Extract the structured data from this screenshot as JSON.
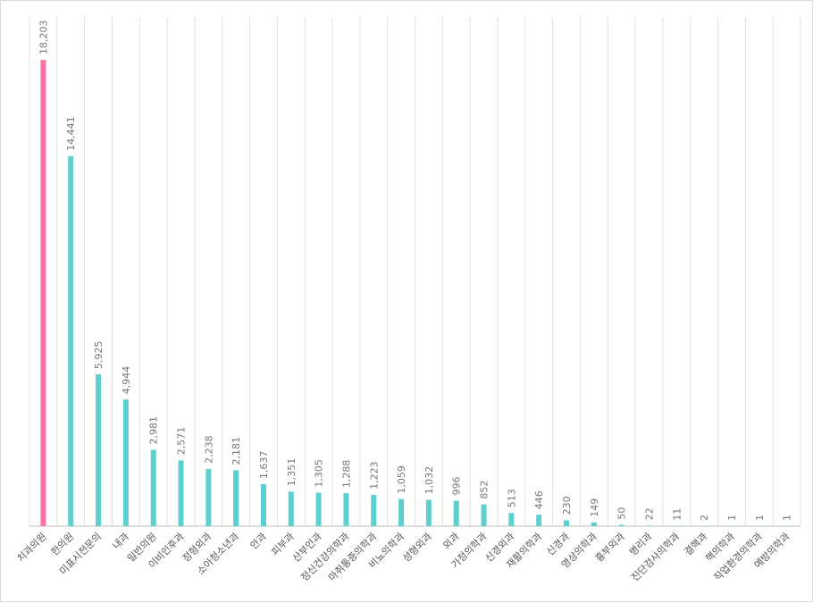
{
  "chart_data": {
    "type": "bar",
    "title": "",
    "xlabel": "",
    "ylabel": "",
    "ylim": [
      0,
      18203
    ],
    "grid": true,
    "categories": [
      "치과의원",
      "한의원",
      "미표시전문의",
      "내과",
      "일반의원",
      "이비인후과",
      "정형외과",
      "소아청소년과",
      "안과",
      "피부과",
      "산부인과",
      "정신건강의학과",
      "마취통증의학과",
      "비뇨의학과",
      "성형외과",
      "외과",
      "가정의학과",
      "신경외과",
      "재활의학과",
      "신경과",
      "영상의학과",
      "흉부외과",
      "병리과",
      "진단검사의학과",
      "결핵과",
      "핵의학과",
      "직업환경의학과",
      "예방의학과"
    ],
    "values": [
      18203,
      14441,
      5925,
      4944,
      2981,
      2571,
      2238,
      2181,
      1637,
      1351,
      1305,
      1288,
      1223,
      1059,
      1032,
      996,
      852,
      513,
      446,
      230,
      149,
      50,
      22,
      11,
      2,
      1,
      1,
      1
    ],
    "value_labels": [
      "18,203",
      "14,441",
      "5,925",
      "4,944",
      "2,981",
      "2,571",
      "2,238",
      "2,181",
      "1,637",
      "1,351",
      "1,305",
      "1,288",
      "1,223",
      "1,059",
      "1,032",
      "996",
      "852",
      "513",
      "446",
      "230",
      "149",
      "50",
      "22",
      "11",
      "2",
      "1",
      "1",
      "1"
    ],
    "highlight_index": 0,
    "colors": {
      "highlight": "#ff6fa8",
      "default": "#5ccfce"
    }
  }
}
